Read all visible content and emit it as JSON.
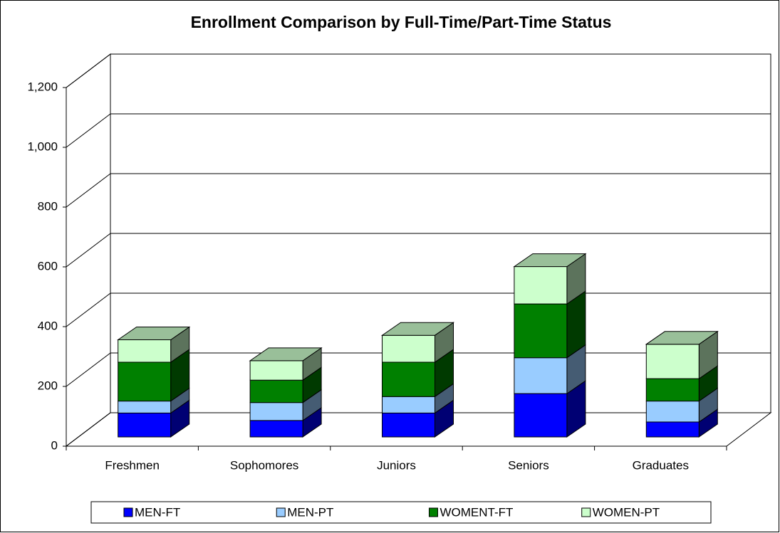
{
  "chart_data": {
    "type": "bar3d_stacked",
    "title": "Enrollment Comparison by Full-Time/Part-Time Status",
    "categories": [
      "Freshmen",
      "Sophomores",
      "Juniors",
      "Seniors",
      "Graduates"
    ],
    "series": [
      {
        "name": "MEN-FT",
        "color": "#0000ff",
        "values": [
          80,
          55,
          80,
          145,
          50
        ]
      },
      {
        "name": "MEN-PT",
        "color": "#99ccff",
        "values": [
          40,
          60,
          55,
          120,
          70
        ]
      },
      {
        "name": "WOMENT-FT",
        "color": "#008000",
        "values": [
          130,
          75,
          115,
          180,
          75
        ]
      },
      {
        "name": "WOMEN-PT",
        "color": "#ccffcc",
        "values": [
          75,
          65,
          90,
          125,
          115
        ]
      }
    ],
    "ylim": [
      0,
      1200
    ],
    "yticks": [
      0,
      200,
      400,
      600,
      800,
      {
        "value": 1000,
        "label": "1,000"
      },
      {
        "value": 1200,
        "label": "1,200"
      }
    ],
    "grid": true,
    "legend": "bottom"
  }
}
